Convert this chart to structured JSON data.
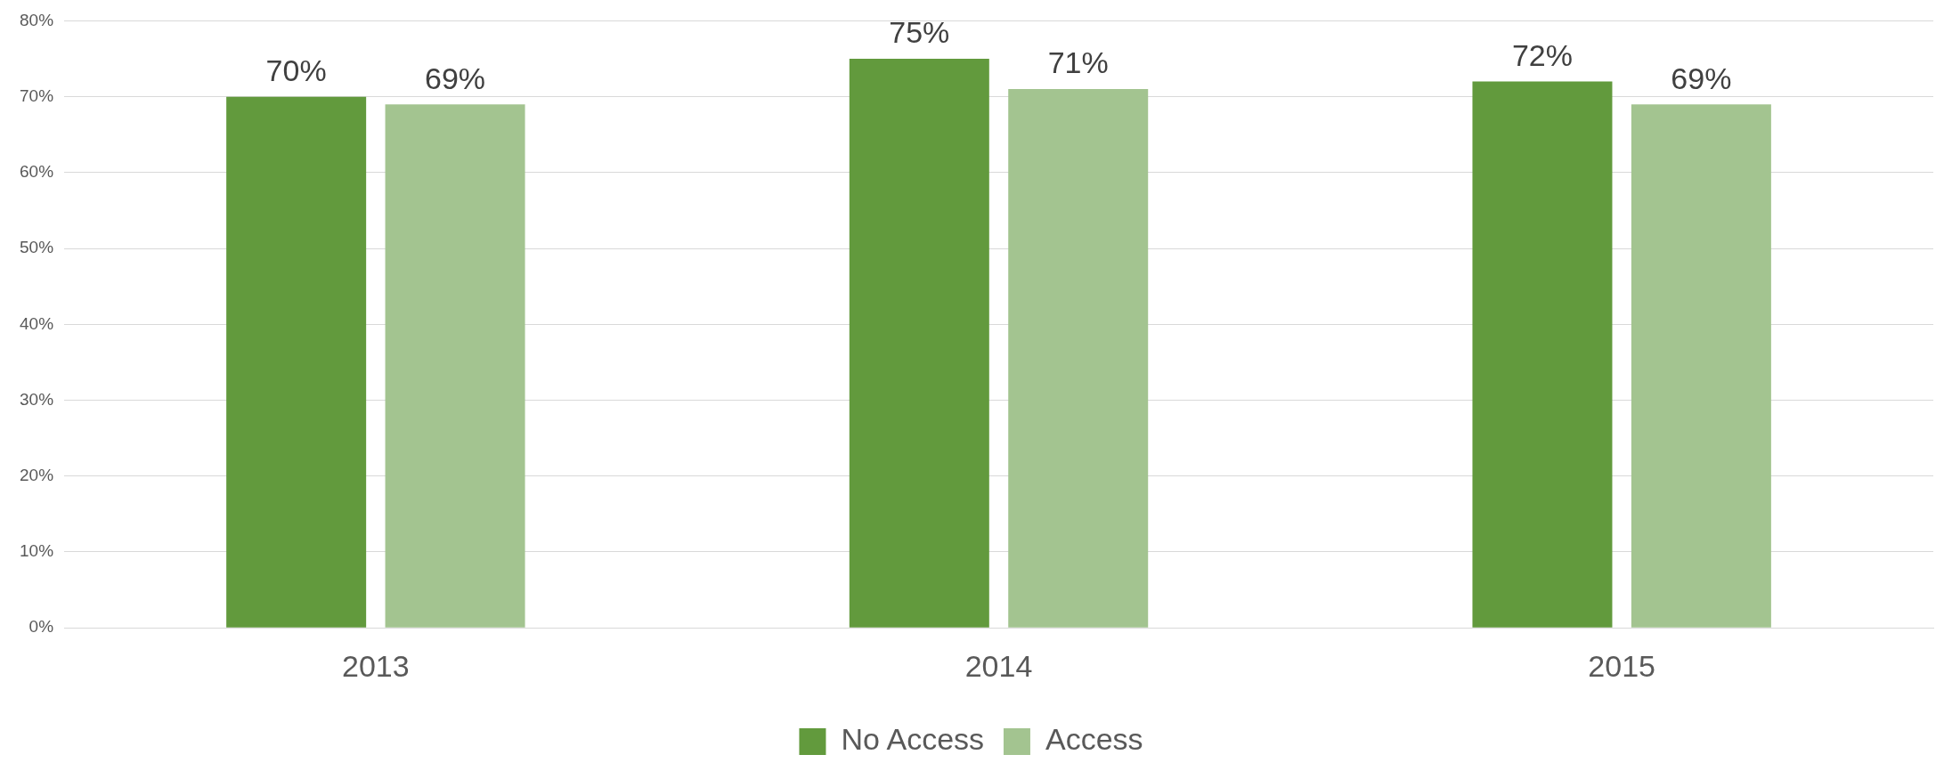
{
  "chart_data": {
    "type": "bar",
    "categories": [
      "2013",
      "2014",
      "2015"
    ],
    "series": [
      {
        "name": "No Access",
        "color": "#629a3d",
        "values": [
          70,
          75,
          72
        ],
        "value_labels": [
          "70%",
          "75%",
          "72%"
        ]
      },
      {
        "name": "Access",
        "color": "#a3c490",
        "values": [
          69,
          71,
          69
        ],
        "value_labels": [
          "69%",
          "71%",
          "69%"
        ]
      }
    ],
    "ylim": [
      0,
      80
    ],
    "yticks": [
      {
        "value": 0,
        "label": "0%"
      },
      {
        "value": 10,
        "label": "10%"
      },
      {
        "value": 20,
        "label": "20%"
      },
      {
        "value": 30,
        "label": "30%"
      },
      {
        "value": 40,
        "label": "40%"
      },
      {
        "value": 50,
        "label": "50%"
      },
      {
        "value": 60,
        "label": "60%"
      },
      {
        "value": 70,
        "label": "70%"
      },
      {
        "value": 80,
        "label": "80%"
      }
    ],
    "grid": "y",
    "legend": "bottom"
  }
}
